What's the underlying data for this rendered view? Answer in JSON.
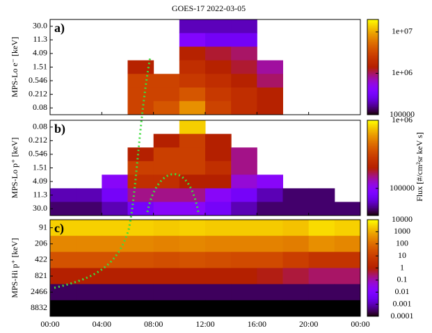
{
  "chart_data": [
    {
      "type": "heatmap",
      "title": "GOES-17 2022-03-05",
      "panel_label": "a)",
      "ylabel": "MPS-Lo e⁻ [keV]",
      "colorbar_label": "Flux [#/cm²sr keV s]",
      "x": [
        0,
        2,
        4,
        6,
        8,
        10,
        12,
        14,
        16,
        18,
        20,
        22
      ],
      "xlim": [
        0,
        24
      ],
      "categories": [
        "30.0",
        "11.3",
        "4.09",
        "1.51",
        "0.546",
        "0.212",
        "0.08"
      ],
      "values": [
        [
          null,
          null,
          null,
          null,
          null,
          200000,
          200000,
          200000,
          null,
          null,
          null,
          null
        ],
        [
          null,
          null,
          null,
          null,
          null,
          400000,
          300000,
          300000,
          null,
          null,
          null,
          null
        ],
        [
          null,
          null,
          null,
          null,
          null,
          1500000,
          1200000,
          1000000,
          null,
          null,
          null,
          null
        ],
        [
          null,
          null,
          null,
          1500000,
          null,
          2000000,
          1500000,
          1200000,
          800000,
          null,
          null,
          null
        ],
        [
          null,
          null,
          null,
          3000000,
          3000000,
          2500000,
          2000000,
          1500000,
          1000000,
          null,
          null,
          null
        ],
        [
          null,
          null,
          null,
          3000000,
          3000000,
          4000000,
          2500000,
          2000000,
          1500000,
          null,
          null,
          null
        ],
        [
          null,
          null,
          null,
          3000000,
          4000000,
          8000000,
          3000000,
          2000000,
          1500000,
          null,
          null,
          null
        ]
      ],
      "clim": [
        100000,
        20000000
      ],
      "log_color": true,
      "cticks": [
        {
          "value": 10000000,
          "label": "1e+07"
        },
        {
          "value": 1000000,
          "label": "1e+06"
        },
        100000
      ]
    },
    {
      "type": "heatmap",
      "panel_label": "b)",
      "ylabel": "MPS-Lo p⁺ [keV]",
      "x": [
        0,
        2,
        4,
        6,
        8,
        10,
        12,
        14,
        16,
        18,
        20,
        22
      ],
      "xlim": [
        0,
        24
      ],
      "categories": [
        "0.08",
        "0.212",
        "0.546",
        "1.51",
        "4.09",
        "11.3",
        "30.0"
      ],
      "values": [
        [
          null,
          null,
          null,
          null,
          null,
          800000,
          null,
          null,
          null,
          null,
          null,
          null
        ],
        [
          null,
          null,
          null,
          null,
          200000,
          300000,
          200000,
          null,
          null,
          null,
          null,
          null
        ],
        [
          null,
          null,
          null,
          200000,
          300000,
          300000,
          200000,
          150000,
          null,
          null,
          null,
          null
        ],
        [
          null,
          null,
          null,
          300000,
          300000,
          300000,
          250000,
          150000,
          null,
          null,
          null,
          null
        ],
        [
          null,
          null,
          100000,
          250000,
          250000,
          200000,
          200000,
          120000,
          100000,
          null,
          null,
          null
        ],
        [
          60000,
          60000,
          80000,
          150000,
          150000,
          150000,
          100000,
          80000,
          60000,
          50000,
          50000,
          null
        ],
        [
          50000,
          50000,
          60000,
          80000,
          100000,
          100000,
          80000,
          60000,
          50000,
          50000,
          50000,
          50000
        ]
      ],
      "clim": [
        40000,
        1000000
      ],
      "log_color": true,
      "cticks": [
        {
          "value": 1000000,
          "label": "1e+06"
        },
        100000
      ]
    },
    {
      "type": "heatmap",
      "panel_label": "c)",
      "ylabel": "MPS-Hi p⁺ [keV]",
      "x": [
        0,
        2,
        4,
        6,
        8,
        10,
        12,
        14,
        16,
        18,
        20,
        22
      ],
      "xlim": [
        0,
        24
      ],
      "xticks": [
        {
          "value": 0,
          "label": "00:00"
        },
        {
          "value": 4,
          "label": "04:00"
        },
        {
          "value": 8,
          "label": "08:00"
        },
        {
          "value": 12,
          "label": "12:00"
        },
        {
          "value": 16,
          "label": "16:00"
        },
        {
          "value": 20,
          "label": "20:00"
        },
        {
          "value": 24,
          "label": "00:00"
        }
      ],
      "categories": [
        "91",
        "206",
        "422",
        "821",
        "2466",
        "8832"
      ],
      "values": [
        [
          3000,
          3000,
          3000,
          3000,
          2500,
          3000,
          2500,
          2500,
          2500,
          2000,
          4000,
          3000
        ],
        [
          300,
          300,
          300,
          300,
          250,
          300,
          250,
          250,
          250,
          200,
          400,
          300
        ],
        [
          30,
          30,
          30,
          30,
          25,
          30,
          25,
          20,
          20,
          10,
          5,
          5
        ],
        [
          1,
          1,
          1,
          1,
          1,
          1,
          1,
          1,
          0.8,
          0.5,
          0.3,
          0.3
        ],
        [
          0.0003,
          0.0003,
          0.0003,
          0.0003,
          0.0003,
          0.0003,
          0.0003,
          0.0003,
          0.0003,
          0.0003,
          0.0003,
          0.0003
        ],
        [
          0.0001,
          0.0001,
          0.0001,
          0.0001,
          0.0001,
          0.0001,
          0.0001,
          0.0001,
          0.0001,
          0.0001,
          0.0001,
          0.0001
        ]
      ],
      "clim": [
        0.0001,
        10000
      ],
      "log_color": true,
      "cticks": [
        10000,
        1000,
        100,
        10,
        1,
        0.1,
        0.01,
        0.001,
        0.0001
      ]
    }
  ]
}
